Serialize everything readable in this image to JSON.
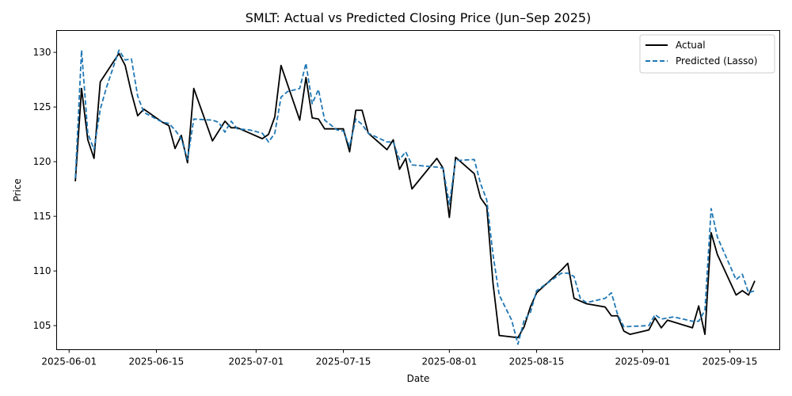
{
  "chart_data": {
    "type": "line",
    "title": "SMLT: Actual vs Predicted Closing Price (Jun–Sep 2025)",
    "xlabel": "Date",
    "ylabel": "Price",
    "xlim": [
      "2025-05-30",
      "2025-09-23"
    ],
    "ylim": [
      102.8,
      132.0
    ],
    "x_ticks": [
      "2025-06-01",
      "2025-06-15",
      "2025-07-01",
      "2025-07-15",
      "2025-08-01",
      "2025-08-15",
      "2025-09-01",
      "2025-09-15"
    ],
    "y_ticks": [
      105,
      110,
      115,
      120,
      125,
      130
    ],
    "grid": false,
    "legend_position": "top-right",
    "series": [
      {
        "name": "Actual",
        "color": "#000000",
        "style": "solid",
        "points": [
          [
            "2025-06-02",
            118.2
          ],
          [
            "2025-06-03",
            126.7
          ],
          [
            "2025-06-04",
            122.0
          ],
          [
            "2025-06-05",
            120.3
          ],
          [
            "2025-06-06",
            127.3
          ],
          [
            "2025-06-09",
            129.9
          ],
          [
            "2025-06-10",
            128.8
          ],
          [
            "2025-06-11",
            126.3
          ],
          [
            "2025-06-12",
            124.2
          ],
          [
            "2025-06-13",
            124.8
          ],
          [
            "2025-06-16",
            123.6
          ],
          [
            "2025-06-17",
            123.3
          ],
          [
            "2025-06-18",
            121.2
          ],
          [
            "2025-06-19",
            122.4
          ],
          [
            "2025-06-20",
            119.9
          ],
          [
            "2025-06-21",
            126.7
          ],
          [
            "2025-06-24",
            121.9
          ],
          [
            "2025-06-26",
            123.7
          ],
          [
            "2025-06-27",
            123.1
          ],
          [
            "2025-06-28",
            123.1
          ],
          [
            "2025-06-30",
            122.6
          ],
          [
            "2025-07-02",
            122.1
          ],
          [
            "2025-07-03",
            122.5
          ],
          [
            "2025-07-04",
            124.1
          ],
          [
            "2025-07-05",
            128.8
          ],
          [
            "2025-07-08",
            123.8
          ],
          [
            "2025-07-09",
            127.7
          ],
          [
            "2025-07-10",
            124.0
          ],
          [
            "2025-07-11",
            123.9
          ],
          [
            "2025-07-12",
            123.0
          ],
          [
            "2025-07-14",
            123.0
          ],
          [
            "2025-07-15",
            123.0
          ],
          [
            "2025-07-16",
            120.9
          ],
          [
            "2025-07-17",
            124.7
          ],
          [
            "2025-07-18",
            124.7
          ],
          [
            "2025-07-19",
            122.6
          ],
          [
            "2025-07-22",
            121.1
          ],
          [
            "2025-07-23",
            122.0
          ],
          [
            "2025-07-24",
            119.3
          ],
          [
            "2025-07-25",
            120.3
          ],
          [
            "2025-07-26",
            117.5
          ],
          [
            "2025-07-30",
            120.3
          ],
          [
            "2025-07-31",
            119.4
          ],
          [
            "2025-08-01",
            114.9
          ],
          [
            "2025-08-02",
            120.4
          ],
          [
            "2025-08-05",
            118.9
          ],
          [
            "2025-08-06",
            116.7
          ],
          [
            "2025-08-07",
            115.9
          ],
          [
            "2025-08-08",
            108.9
          ],
          [
            "2025-08-09",
            104.1
          ],
          [
            "2025-08-12",
            103.9
          ],
          [
            "2025-08-13",
            104.9
          ],
          [
            "2025-08-14",
            106.7
          ],
          [
            "2025-08-15",
            108.0
          ],
          [
            "2025-08-19",
            110.1
          ],
          [
            "2025-08-20",
            110.7
          ],
          [
            "2025-08-21",
            107.5
          ],
          [
            "2025-08-23",
            107.0
          ],
          [
            "2025-08-26",
            106.7
          ],
          [
            "2025-08-27",
            105.9
          ],
          [
            "2025-08-28",
            105.9
          ],
          [
            "2025-08-29",
            104.5
          ],
          [
            "2025-08-30",
            104.2
          ],
          [
            "2025-09-02",
            104.6
          ],
          [
            "2025-09-03",
            105.7
          ],
          [
            "2025-09-04",
            104.8
          ],
          [
            "2025-09-05",
            105.5
          ],
          [
            "2025-09-09",
            104.8
          ],
          [
            "2025-09-10",
            106.8
          ],
          [
            "2025-09-11",
            104.2
          ],
          [
            "2025-09-12",
            113.5
          ],
          [
            "2025-09-13",
            111.5
          ],
          [
            "2025-09-16",
            107.8
          ],
          [
            "2025-09-17",
            108.2
          ],
          [
            "2025-09-18",
            107.8
          ],
          [
            "2025-09-19",
            109.1
          ]
        ]
      },
      {
        "name": "Predicted (Lasso)",
        "color": "#1f77b4",
        "style": "dashed",
        "points": [
          [
            "2025-06-02",
            118.5
          ],
          [
            "2025-06-03",
            130.2
          ],
          [
            "2025-06-04",
            122.6
          ],
          [
            "2025-06-05",
            121.1
          ],
          [
            "2025-06-06",
            124.8
          ],
          [
            "2025-06-07",
            126.8
          ],
          [
            "2025-06-09",
            130.2
          ],
          [
            "2025-06-10",
            129.3
          ],
          [
            "2025-06-11",
            129.4
          ],
          [
            "2025-06-12",
            126.0
          ],
          [
            "2025-06-13",
            124.5
          ],
          [
            "2025-06-16",
            123.6
          ],
          [
            "2025-06-17",
            123.5
          ],
          [
            "2025-06-18",
            122.9
          ],
          [
            "2025-06-19",
            122.1
          ],
          [
            "2025-06-20",
            120.2
          ],
          [
            "2025-06-21",
            123.9
          ],
          [
            "2025-06-24",
            123.8
          ],
          [
            "2025-06-25",
            123.6
          ],
          [
            "2025-06-26",
            122.7
          ],
          [
            "2025-06-27",
            123.7
          ],
          [
            "2025-06-28",
            123.0
          ],
          [
            "2025-06-30",
            122.9
          ],
          [
            "2025-07-02",
            122.6
          ],
          [
            "2025-07-03",
            121.8
          ],
          [
            "2025-07-04",
            122.6
          ],
          [
            "2025-07-05",
            125.9
          ],
          [
            "2025-07-06",
            126.4
          ],
          [
            "2025-07-08",
            126.7
          ],
          [
            "2025-07-09",
            129.0
          ],
          [
            "2025-07-10",
            125.3
          ],
          [
            "2025-07-11",
            126.6
          ],
          [
            "2025-07-12",
            123.8
          ],
          [
            "2025-07-14",
            122.9
          ],
          [
            "2025-07-15",
            122.8
          ],
          [
            "2025-07-16",
            121.4
          ],
          [
            "2025-07-17",
            123.9
          ],
          [
            "2025-07-18",
            123.4
          ],
          [
            "2025-07-19",
            122.6
          ],
          [
            "2025-07-22",
            121.8
          ],
          [
            "2025-07-23",
            121.8
          ],
          [
            "2025-07-24",
            120.2
          ],
          [
            "2025-07-25",
            120.9
          ],
          [
            "2025-07-26",
            119.7
          ],
          [
            "2025-07-30",
            119.5
          ],
          [
            "2025-07-31",
            119.4
          ],
          [
            "2025-08-01",
            116.1
          ],
          [
            "2025-08-02",
            120.1
          ],
          [
            "2025-08-05",
            120.2
          ],
          [
            "2025-08-06",
            118.0
          ],
          [
            "2025-08-07",
            116.5
          ],
          [
            "2025-08-08",
            111.5
          ],
          [
            "2025-08-09",
            107.8
          ],
          [
            "2025-08-11",
            105.5
          ],
          [
            "2025-08-12",
            103.3
          ],
          [
            "2025-08-13",
            105.5
          ],
          [
            "2025-08-14",
            106.2
          ],
          [
            "2025-08-15",
            108.2
          ],
          [
            "2025-08-19",
            109.8
          ],
          [
            "2025-08-20",
            109.8
          ],
          [
            "2025-08-21",
            109.5
          ],
          [
            "2025-08-22",
            107.5
          ],
          [
            "2025-08-23",
            107.1
          ],
          [
            "2025-08-26",
            107.5
          ],
          [
            "2025-08-27",
            108.0
          ],
          [
            "2025-08-28",
            106.0
          ],
          [
            "2025-08-29",
            104.9
          ],
          [
            "2025-09-02",
            105.0
          ],
          [
            "2025-09-03",
            106.0
          ],
          [
            "2025-09-04",
            105.6
          ],
          [
            "2025-09-06",
            105.8
          ],
          [
            "2025-09-09",
            105.4
          ],
          [
            "2025-09-10",
            105.4
          ],
          [
            "2025-09-11",
            106.4
          ],
          [
            "2025-09-12",
            115.7
          ],
          [
            "2025-09-13",
            113.1
          ],
          [
            "2025-09-16",
            109.2
          ],
          [
            "2025-09-17",
            109.7
          ],
          [
            "2025-09-18",
            108.0
          ],
          [
            "2025-09-19",
            108.2
          ]
        ]
      }
    ]
  }
}
